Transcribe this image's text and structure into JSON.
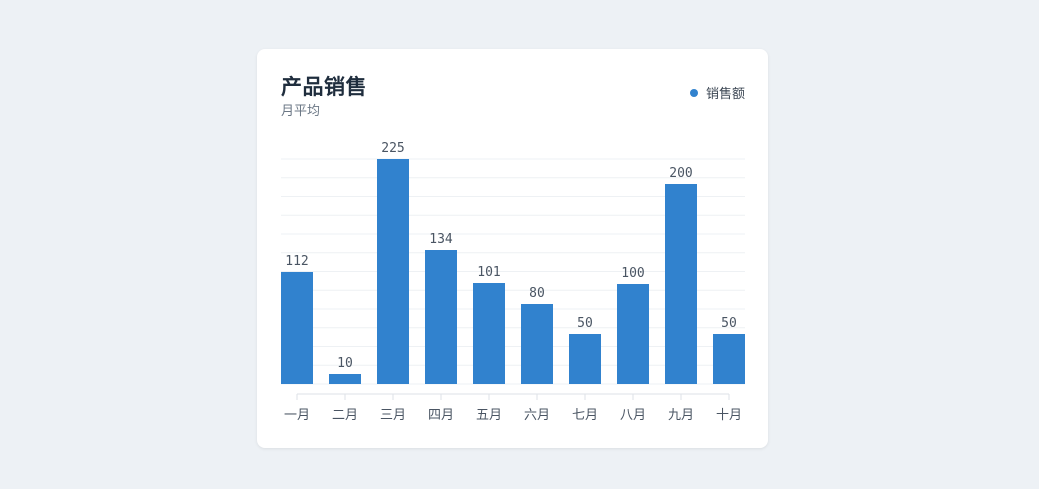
{
  "chart_data": {
    "type": "bar",
    "title": "产品销售",
    "subtitle": "月平均",
    "categories": [
      "一月",
      "二月",
      "三月",
      "四月",
      "五月",
      "六月",
      "七月",
      "八月",
      "九月",
      "十月"
    ],
    "series": [
      {
        "name": "销售额",
        "values": [
          112,
          10,
          225,
          134,
          101,
          80,
          50,
          100,
          200,
          50
        ],
        "color": "#3182ce"
      }
    ],
    "ylim": [
      0,
      225
    ],
    "grid": true,
    "legend_position": "top-right",
    "data_labels": true
  }
}
